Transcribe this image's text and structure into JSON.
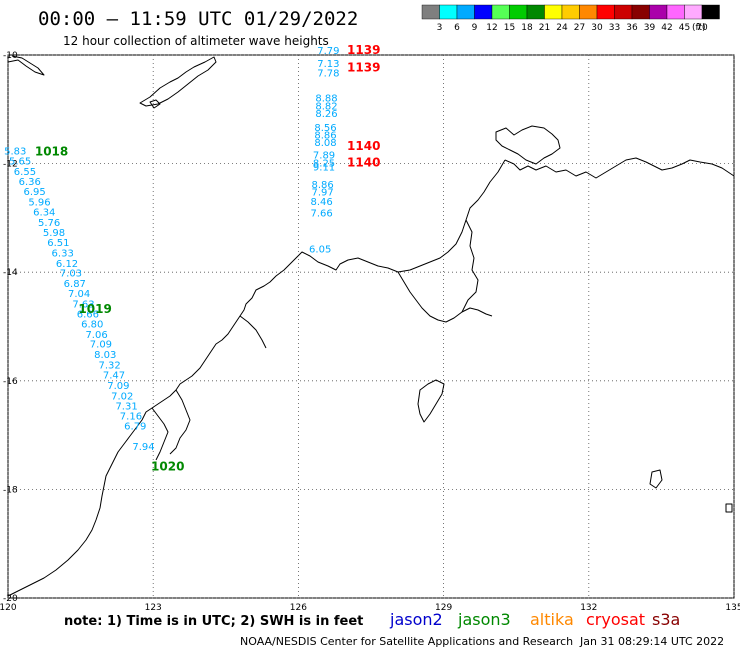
{
  "header": {
    "title": "00:00 – 11:59 UTC 01/29/2022",
    "subtitle": "12 hour collection of altimeter wave heights"
  },
  "legend": {
    "unit": "(ft)",
    "bins": [
      {
        "label": "3",
        "color": "#7f7f7f"
      },
      {
        "label": "6",
        "color": "#00ffff"
      },
      {
        "label": "9",
        "color": "#00aaff"
      },
      {
        "label": "12",
        "color": "#0000ff"
      },
      {
        "label": "15",
        "color": "#55ff55"
      },
      {
        "label": "18",
        "color": "#00cc00"
      },
      {
        "label": "21",
        "color": "#008800"
      },
      {
        "label": "24",
        "color": "#ffff00"
      },
      {
        "label": "27",
        "color": "#ffcc00"
      },
      {
        "label": "30",
        "color": "#ff8800"
      },
      {
        "label": "33",
        "color": "#ff0000"
      },
      {
        "label": "36",
        "color": "#cc0000"
      },
      {
        "label": "39",
        "color": "#880000"
      },
      {
        "label": "42",
        "color": "#aa00aa"
      },
      {
        "label": "45",
        "color": "#ff66ff"
      },
      {
        "label": "70",
        "color": "#ffaaff"
      },
      {
        "label": "",
        "color": "#000000"
      }
    ]
  },
  "axes": {
    "lat_labels": [
      "-10",
      "-12",
      "-14",
      "-16",
      "-18",
      "-20"
    ],
    "lon_labels": [
      "120",
      "123",
      "126",
      "129",
      "132",
      "135"
    ]
  },
  "wave_color": "#00aaff",
  "track_colors": {
    "jason2": "#0000ff",
    "jason3": "#008800",
    "altika": "#ff8800",
    "cryosat": "#ff0000",
    "s3a": "#880000"
  },
  "tracks": [
    {
      "satellite": "jason3",
      "labels": [
        {
          "lon": 120.9,
          "lat": -11.85,
          "text": "1018"
        },
        {
          "lon": 121.8,
          "lat": -14.75,
          "text": "1019"
        },
        {
          "lon": 123.3,
          "lat": -17.65,
          "text": "1020"
        }
      ],
      "readings": [
        {
          "lon": 120.15,
          "lat": -11.83,
          "value": "5.83"
        },
        {
          "lon": 120.25,
          "lat": -12.02,
          "value": "5.65"
        },
        {
          "lon": 120.35,
          "lat": -12.21,
          "value": "6.55"
        },
        {
          "lon": 120.45,
          "lat": -12.39,
          "value": "6.36"
        },
        {
          "lon": 120.55,
          "lat": -12.58,
          "value": "6.95"
        },
        {
          "lon": 120.65,
          "lat": -12.77,
          "value": "5.96"
        },
        {
          "lon": 120.75,
          "lat": -12.96,
          "value": "6.34"
        },
        {
          "lon": 120.85,
          "lat": -13.15,
          "value": "5.76"
        },
        {
          "lon": 120.95,
          "lat": -13.33,
          "value": "5.98"
        },
        {
          "lon": 121.04,
          "lat": -13.52,
          "value": "6.51"
        },
        {
          "lon": 121.13,
          "lat": -13.71,
          "value": "6.33"
        },
        {
          "lon": 121.22,
          "lat": -13.9,
          "value": "6.12"
        },
        {
          "lon": 121.3,
          "lat": -14.08,
          "value": "7.03"
        },
        {
          "lon": 121.38,
          "lat": -14.27,
          "value": "6.87"
        },
        {
          "lon": 121.47,
          "lat": -14.46,
          "value": "7.04"
        },
        {
          "lon": 121.56,
          "lat": -14.65,
          "value": "7.63"
        },
        {
          "lon": 121.65,
          "lat": -14.83,
          "value": "6.66"
        },
        {
          "lon": 121.74,
          "lat": -15.02,
          "value": "6.80"
        },
        {
          "lon": 121.83,
          "lat": -15.21,
          "value": "7.06"
        },
        {
          "lon": 121.92,
          "lat": -15.39,
          "value": "7.09"
        },
        {
          "lon": 122.01,
          "lat": -15.58,
          "value": "8.03"
        },
        {
          "lon": 122.1,
          "lat": -15.77,
          "value": "7.32"
        },
        {
          "lon": 122.19,
          "lat": -15.96,
          "value": "7.47"
        },
        {
          "lon": 122.28,
          "lat": -16.15,
          "value": "7.09"
        },
        {
          "lon": 122.36,
          "lat": -16.34,
          "value": "7.02"
        },
        {
          "lon": 122.45,
          "lat": -16.53,
          "value": "7.31"
        },
        {
          "lon": 122.54,
          "lat": -16.71,
          "value": "7.16"
        },
        {
          "lon": 122.63,
          "lat": -16.9,
          "value": "6.79"
        },
        {
          "lon": 122.8,
          "lat": -17.27,
          "value": "7.94"
        }
      ]
    },
    {
      "satellite": "cryosat",
      "labels": [
        {
          "lon": 127.35,
          "lat": -9.98,
          "text": "1139"
        },
        {
          "lon": 127.35,
          "lat": -10.3,
          "text": "1139"
        },
        {
          "lon": 127.35,
          "lat": -11.75,
          "text": "1140"
        },
        {
          "lon": 127.35,
          "lat": -12.05,
          "text": "1140"
        }
      ],
      "readings": [
        {
          "lon": 126.62,
          "lat": -9.98,
          "value": "7.79"
        },
        {
          "lon": 126.62,
          "lat": -10.22,
          "value": "7.13"
        },
        {
          "lon": 126.62,
          "lat": -10.4,
          "value": "7.78"
        },
        {
          "lon": 126.58,
          "lat": -10.86,
          "value": "8.88"
        },
        {
          "lon": 126.58,
          "lat": -11.0,
          "value": "8.82"
        },
        {
          "lon": 126.58,
          "lat": -11.14,
          "value": "8.26"
        },
        {
          "lon": 126.56,
          "lat": -11.4,
          "value": "8.56"
        },
        {
          "lon": 126.56,
          "lat": -11.54,
          "value": "8.86"
        },
        {
          "lon": 126.56,
          "lat": -11.68,
          "value": "8.08"
        },
        {
          "lon": 126.53,
          "lat": -11.91,
          "value": "7.89"
        },
        {
          "lon": 126.53,
          "lat": -12.05,
          "value": "8.25"
        },
        {
          "lon": 126.53,
          "lat": -12.13,
          "value": "9.11"
        },
        {
          "lon": 126.5,
          "lat": -12.45,
          "value": "8.86"
        },
        {
          "lon": 126.5,
          "lat": -12.59,
          "value": "7.97"
        },
        {
          "lon": 126.48,
          "lat": -12.76,
          "value": "8.46"
        },
        {
          "lon": 126.48,
          "lat": -12.97,
          "value": "7.66"
        },
        {
          "lon": 126.45,
          "lat": -13.64,
          "value": "6.05"
        }
      ]
    }
  ],
  "footer": {
    "note": "note: 1) Time is in UTC; 2) SWH is in feet",
    "satellites": [
      {
        "name": "jason2",
        "color": "#0000cc"
      },
      {
        "name": "jason3",
        "color": "#008800"
      },
      {
        "name": "altika",
        "color": "#ff8800"
      },
      {
        "name": "cryosat",
        "color": "#ff0000"
      },
      {
        "name": "s3a",
        "color": "#880000"
      }
    ],
    "credit": "NOAA/NESDIS Center for Satellite Applications and Research",
    "timestamp": "Jan 31 08:29:14 UTC 2022"
  }
}
